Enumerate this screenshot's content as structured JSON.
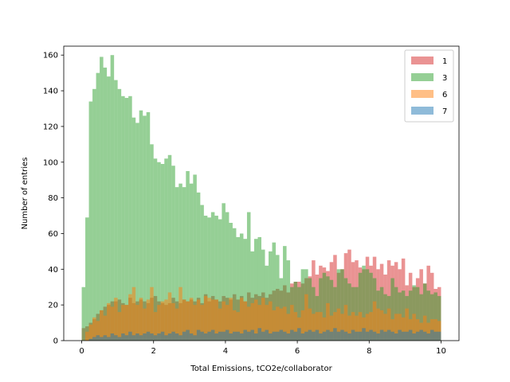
{
  "chart_data": {
    "type": "bar",
    "subtype": "overlaid-histogram",
    "title": "",
    "xlabel": "Total Emissions, tCO2e/collaborator",
    "ylabel": "Number of entries",
    "xlim": [
      -0.5,
      10.5
    ],
    "ylim": [
      0,
      165
    ],
    "x_ticks": [
      0,
      2,
      4,
      6,
      8,
      10
    ],
    "y_ticks": [
      0,
      20,
      40,
      60,
      80,
      100,
      120,
      140,
      160
    ],
    "bin_start": 0,
    "bin_width": 0.1,
    "bar_alpha": 0.5,
    "grid": false,
    "legend_position": "top-right",
    "series": [
      {
        "name": "1",
        "color": "#d62728",
        "values": [
          7,
          8,
          10,
          12,
          15,
          17,
          19,
          20,
          22,
          22,
          23,
          21,
          20,
          24,
          21,
          22,
          23,
          22,
          21,
          24,
          25,
          22,
          21,
          20,
          21,
          24,
          22,
          21,
          23,
          22,
          23,
          22,
          24,
          21,
          26,
          22,
          25,
          23,
          22,
          25,
          24,
          23,
          26,
          23,
          25,
          22,
          27,
          24,
          26,
          25,
          27,
          24,
          26,
          28,
          29,
          28,
          31,
          27,
          32,
          33,
          33,
          32,
          35,
          36,
          45,
          37,
          42,
          41,
          39,
          44,
          48,
          38,
          40,
          49,
          51,
          44,
          45,
          41,
          40,
          47,
          42,
          47,
          40,
          43,
          37,
          45,
          42,
          44,
          40,
          46,
          31,
          38,
          30,
          35,
          40,
          32,
          42,
          38,
          29,
          30
        ]
      },
      {
        "name": "3",
        "color": "#2ca02c",
        "values": [
          30,
          69,
          134,
          141,
          150,
          159,
          153,
          148,
          160,
          146,
          141,
          137,
          136,
          137,
          125,
          122,
          129,
          126,
          128,
          110,
          102,
          100,
          99,
          102,
          104,
          98,
          86,
          88,
          86,
          95,
          88,
          93,
          83,
          76,
          70,
          69,
          72,
          70,
          68,
          77,
          72,
          66,
          63,
          58,
          60,
          57,
          72,
          50,
          57,
          58,
          51,
          42,
          50,
          55,
          48,
          35,
          53,
          45,
          30,
          33,
          30,
          40,
          40,
          35,
          30,
          25,
          35,
          38,
          36,
          34,
          30,
          40,
          40,
          35,
          32,
          30,
          30,
          38,
          42,
          40,
          38,
          35,
          28,
          30,
          26,
          25,
          35,
          30,
          27,
          28,
          25,
          28,
          31,
          30,
          26,
          32,
          28,
          26,
          27,
          25
        ]
      },
      {
        "name": "6",
        "color": "#ff7f0e",
        "values": [
          0,
          5,
          9,
          13,
          11,
          17,
          14,
          21,
          19,
          24,
          16,
          20,
          20,
          26,
          30,
          20,
          24,
          18,
          23,
          30,
          16,
          20,
          22,
          23,
          27,
          21,
          18,
          30,
          23,
          22,
          24,
          20,
          23,
          20,
          25,
          24,
          23,
          23,
          18,
          22,
          20,
          24,
          17,
          16,
          24,
          22,
          19,
          21,
          23,
          20,
          24,
          20,
          22,
          17,
          19,
          18,
          19,
          15,
          20,
          16,
          13,
          17,
          26,
          18,
          15,
          16,
          16,
          13,
          21,
          14,
          16,
          18,
          15,
          20,
          14,
          16,
          14,
          16,
          13,
          15,
          16,
          22,
          18,
          17,
          15,
          18,
          12,
          15,
          15,
          13,
          18,
          12,
          15,
          12,
          10,
          14,
          10,
          12,
          12,
          11
        ]
      },
      {
        "name": "7",
        "color": "#1f77b4",
        "values": [
          0,
          0,
          1,
          2,
          3,
          2,
          3,
          2,
          4,
          3,
          2,
          4,
          3,
          5,
          3,
          4,
          3,
          4,
          5,
          4,
          3,
          4,
          5,
          3,
          4,
          5,
          4,
          3,
          5,
          6,
          4,
          3,
          6,
          5,
          4,
          5,
          6,
          4,
          5,
          5,
          6,
          4,
          5,
          5,
          4,
          6,
          5,
          6,
          4,
          7,
          5,
          6,
          4,
          5,
          5,
          6,
          5,
          4,
          6,
          5,
          7,
          4,
          5,
          6,
          5,
          6,
          4,
          5,
          6,
          5,
          7,
          5,
          6,
          5,
          4,
          6,
          5,
          5,
          7,
          5,
          6,
          5,
          4,
          6,
          5,
          6,
          5,
          4,
          6,
          5,
          5,
          6,
          4,
          5,
          6,
          5,
          4,
          6,
          5,
          5
        ]
      }
    ]
  }
}
